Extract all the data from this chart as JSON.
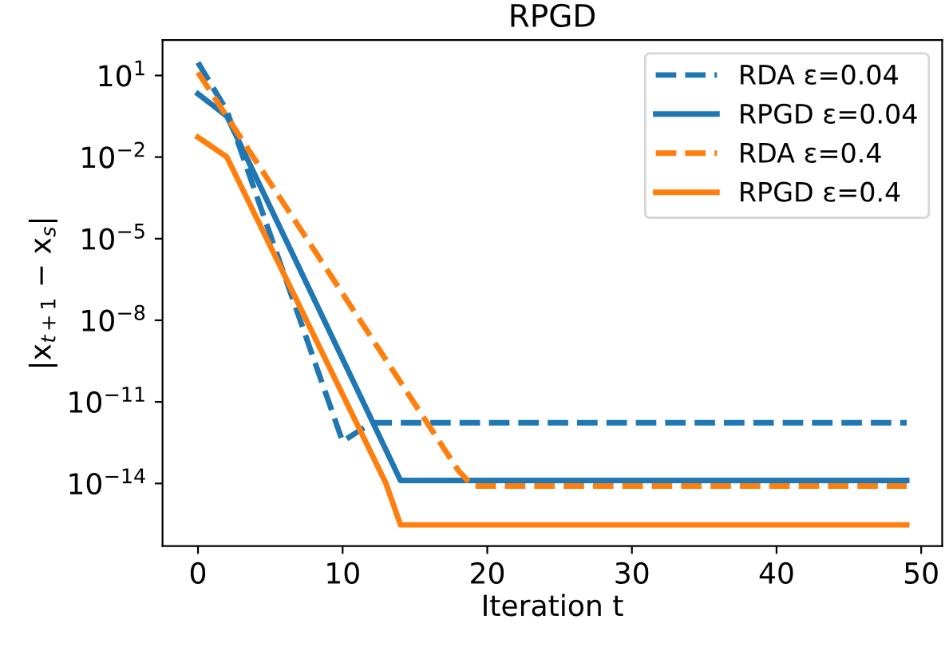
{
  "chart_data": {
    "type": "line",
    "title": "RPGD",
    "xlabel": "Iteration t",
    "ylabel": "|x$_{t+1}$ − x$_{s}$|",
    "log": "y",
    "grid": false,
    "legend": "top right",
    "marker": "none",
    "xlim": [
      -2.45,
      51.45
    ],
    "xticks": [
      0,
      10,
      20,
      30,
      40,
      50
    ],
    "ylim": [
      5e-17,
      200.0
    ],
    "yticks": [
      {
        "value": 10,
        "label": "10$^{1}$"
      },
      {
        "value": 0.01,
        "label": "10$^{−2}$"
      },
      {
        "value": 1e-05,
        "label": "10$^{−5}$"
      },
      {
        "value": 1e-08,
        "label": "10$^{−8}$"
      },
      {
        "value": 1e-11,
        "label": "10$^{−11}$"
      },
      {
        "value": 1e-14,
        "label": "10$^{−14}$"
      }
    ],
    "series": [
      {
        "name": "RDA ε=0.04",
        "color": "#1f77b4",
        "line_style": "dashed",
        "x": [
          0,
          2,
          10,
          12,
          49
        ],
        "values": [
          30,
          0.5,
          3.5e-13,
          1.7e-12,
          1.7e-12
        ]
      },
      {
        "name": "RPGD ε=0.04",
        "color": "#1f77b4",
        "line_style": "solid",
        "x": [
          0,
          2,
          14,
          49
        ],
        "values": [
          2.1,
          0.32,
          1.3e-14,
          1.3e-14
        ]
      },
      {
        "name": "RDA ε=0.4",
        "color": "#ff7f0e",
        "line_style": "dashed",
        "x": [
          0,
          18,
          19,
          49
        ],
        "values": [
          13,
          3e-14,
          8e-15,
          8e-15
        ]
      },
      {
        "name": "RPGD ε=0.4",
        "color": "#ff7f0e",
        "line_style": "solid",
        "x": [
          0,
          2,
          13,
          14,
          49
        ],
        "values": [
          0.054,
          0.01,
          1e-14,
          3e-16,
          3e-16
        ]
      }
    ]
  }
}
